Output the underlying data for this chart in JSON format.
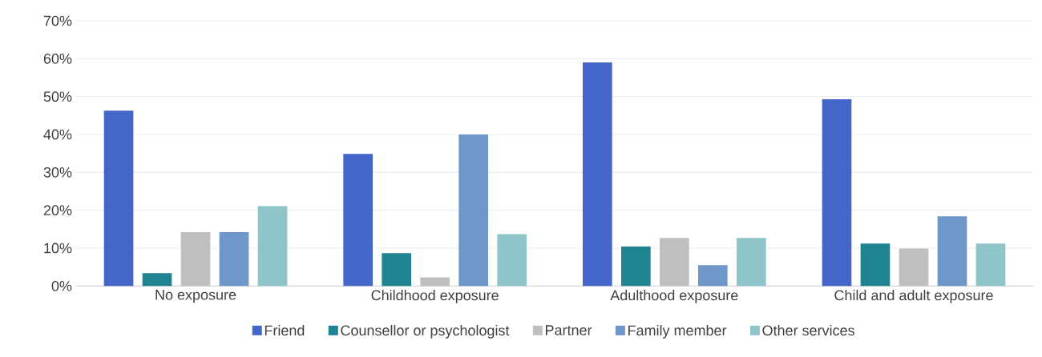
{
  "chart_data": {
    "type": "bar",
    "categories": [
      "No exposure",
      "Childhood exposure",
      "Adulthood exposure",
      "Child and adult exposure"
    ],
    "series": [
      {
        "name": "Friend",
        "color": "#4466c8",
        "values": [
          46.3,
          34.9,
          59.0,
          49.3
        ]
      },
      {
        "name": "Counsellor or psychologist",
        "color": "#1f8490",
        "values": [
          3.4,
          8.7,
          10.4,
          11.2
        ]
      },
      {
        "name": "Partner",
        "color": "#bfbfbf",
        "values": [
          14.2,
          2.3,
          12.7,
          9.9
        ]
      },
      {
        "name": "Family member",
        "color": "#6f96c8",
        "values": [
          14.2,
          40.0,
          5.5,
          18.4
        ]
      },
      {
        "name": "Other services",
        "color": "#8fc5c8",
        "values": [
          21.1,
          13.7,
          12.7,
          11.2
        ]
      }
    ],
    "ylim": [
      0,
      70
    ],
    "yticks": [
      {
        "value": 0,
        "label": "0%"
      },
      {
        "value": 10,
        "label": "10%"
      },
      {
        "value": 20,
        "label": "20%"
      },
      {
        "value": 30,
        "label": "30%"
      },
      {
        "value": 40,
        "label": "40%"
      },
      {
        "value": 50,
        "label": "50%"
      },
      {
        "value": 60,
        "label": "60%"
      },
      {
        "value": 70,
        "label": "70%"
      }
    ],
    "grid": "y",
    "legend": "bottom"
  }
}
